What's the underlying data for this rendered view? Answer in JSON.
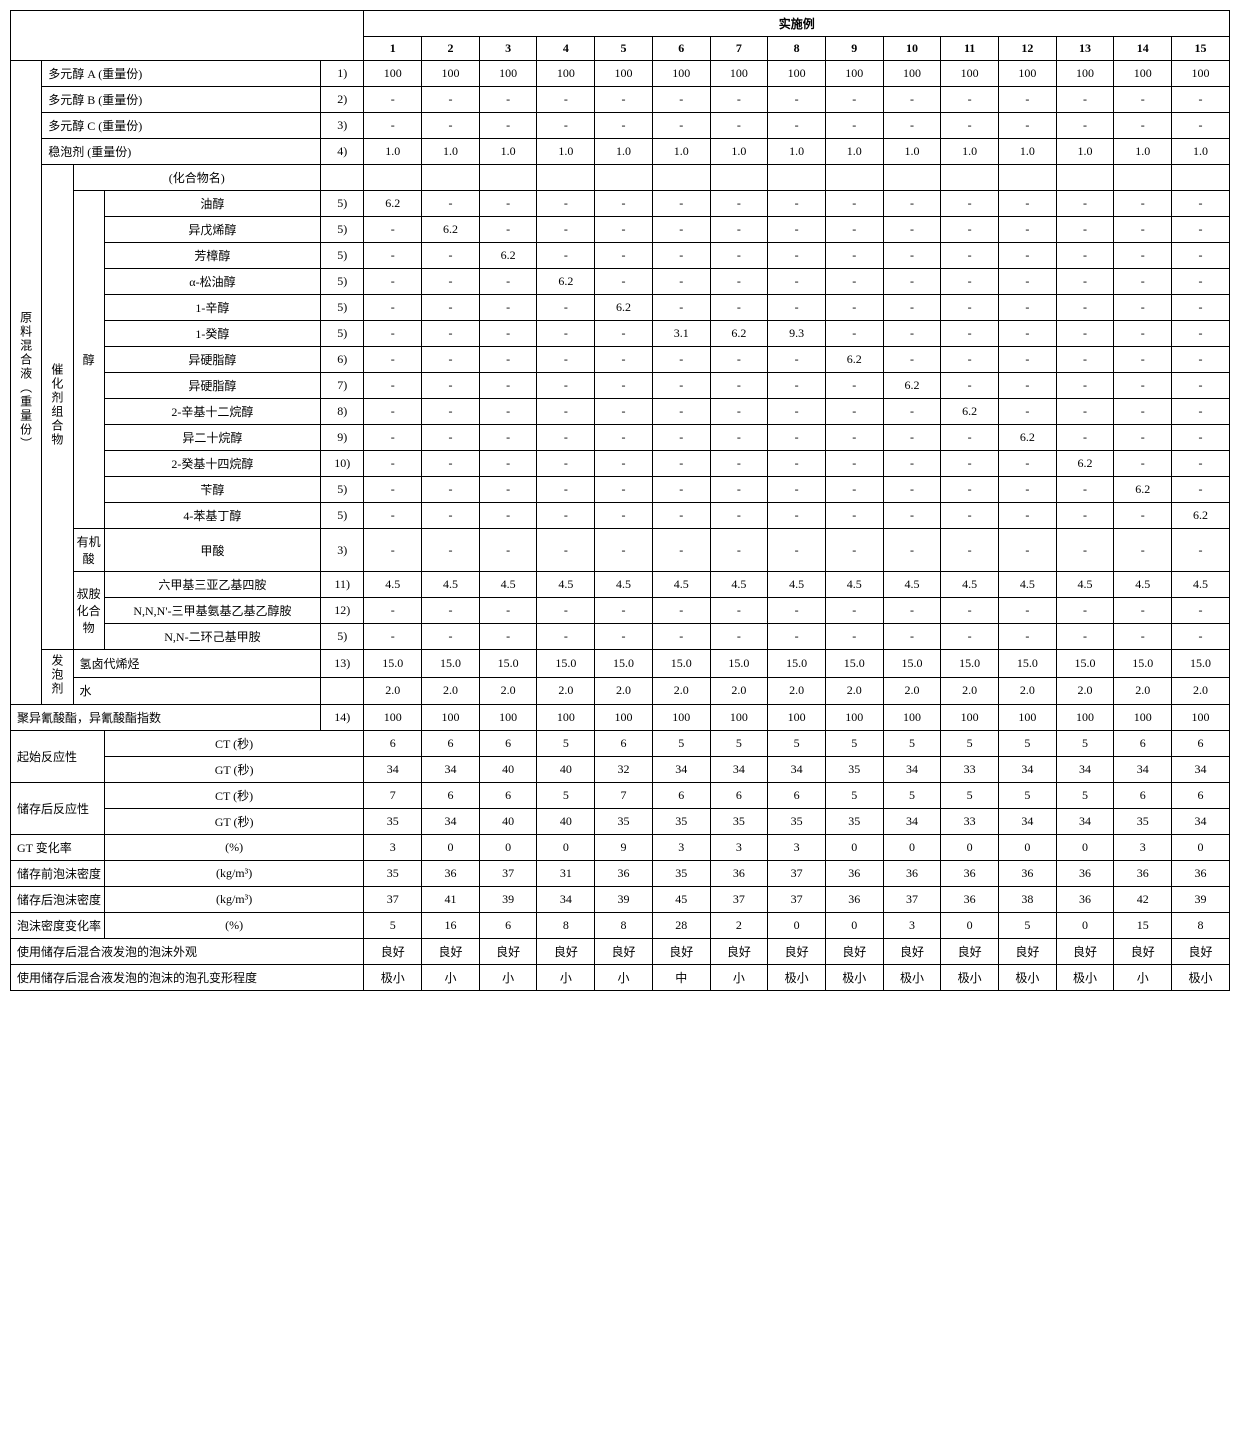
{
  "header": {
    "title": "实施例",
    "cols": [
      "1",
      "2",
      "3",
      "4",
      "5",
      "6",
      "7",
      "8",
      "9",
      "10",
      "11",
      "12",
      "13",
      "14",
      "15"
    ]
  },
  "sideLabels": {
    "rawMix": "原料混合液（重量份）",
    "catalyst": "催化剂组合物",
    "alcohol": "醇",
    "organicAcid": "有机酸",
    "tertAmine": "叔胺化合物",
    "blowing": "发泡剂"
  },
  "rows": {
    "polyA": {
      "label": "多元醇 A (重量份)",
      "note": "1)",
      "vals": [
        "100",
        "100",
        "100",
        "100",
        "100",
        "100",
        "100",
        "100",
        "100",
        "100",
        "100",
        "100",
        "100",
        "100",
        "100"
      ]
    },
    "polyB": {
      "label": "多元醇 B (重量份)",
      "note": "2)",
      "vals": [
        "-",
        "-",
        "-",
        "-",
        "-",
        "-",
        "-",
        "-",
        "-",
        "-",
        "-",
        "-",
        "-",
        "-",
        "-"
      ]
    },
    "polyC": {
      "label": "多元醇 C (重量份)",
      "note": "3)",
      "vals": [
        "-",
        "-",
        "-",
        "-",
        "-",
        "-",
        "-",
        "-",
        "-",
        "-",
        "-",
        "-",
        "-",
        "-",
        "-"
      ]
    },
    "stab": {
      "label": "稳泡剂 (重量份)",
      "note": "4)",
      "vals": [
        "1.0",
        "1.0",
        "1.0",
        "1.0",
        "1.0",
        "1.0",
        "1.0",
        "1.0",
        "1.0",
        "1.0",
        "1.0",
        "1.0",
        "1.0",
        "1.0",
        "1.0"
      ]
    },
    "compName": {
      "label": "(化合物名)",
      "vals": [
        "",
        "",
        "",
        "",
        "",
        "",
        "",
        "",
        "",
        "",
        "",
        "",
        "",
        "",
        ""
      ]
    },
    "a1": {
      "label": "油醇",
      "note": "5)",
      "vals": [
        "6.2",
        "-",
        "-",
        "-",
        "-",
        "-",
        "-",
        "-",
        "-",
        "-",
        "-",
        "-",
        "-",
        "-",
        "-"
      ]
    },
    "a2": {
      "label": "异戊烯醇",
      "note": "5)",
      "vals": [
        "-",
        "6.2",
        "-",
        "-",
        "-",
        "-",
        "-",
        "-",
        "-",
        "-",
        "-",
        "-",
        "-",
        "-",
        "-"
      ]
    },
    "a3": {
      "label": "芳樟醇",
      "note": "5)",
      "vals": [
        "-",
        "-",
        "6.2",
        "-",
        "-",
        "-",
        "-",
        "-",
        "-",
        "-",
        "-",
        "-",
        "-",
        "-",
        "-"
      ]
    },
    "a4": {
      "label": "α-松油醇",
      "note": "5)",
      "vals": [
        "-",
        "-",
        "-",
        "6.2",
        "-",
        "-",
        "-",
        "-",
        "-",
        "-",
        "-",
        "-",
        "-",
        "-",
        "-"
      ]
    },
    "a5": {
      "label": "1-辛醇",
      "note": "5)",
      "vals": [
        "-",
        "-",
        "-",
        "-",
        "6.2",
        "-",
        "-",
        "-",
        "-",
        "-",
        "-",
        "-",
        "-",
        "-",
        "-"
      ]
    },
    "a6": {
      "label": "1-癸醇",
      "note": "5)",
      "vals": [
        "-",
        "-",
        "-",
        "-",
        "-",
        "3.1",
        "6.2",
        "9.3",
        "-",
        "-",
        "-",
        "-",
        "-",
        "-",
        "-"
      ]
    },
    "a7": {
      "label": "异硬脂醇",
      "note": "6)",
      "vals": [
        "-",
        "-",
        "-",
        "-",
        "-",
        "-",
        "-",
        "-",
        "6.2",
        "-",
        "-",
        "-",
        "-",
        "-",
        "-"
      ]
    },
    "a8": {
      "label": "异硬脂醇",
      "note": "7)",
      "vals": [
        "-",
        "-",
        "-",
        "-",
        "-",
        "-",
        "-",
        "-",
        "-",
        "6.2",
        "-",
        "-",
        "-",
        "-",
        "-"
      ]
    },
    "a9": {
      "label": "2-辛基十二烷醇",
      "note": "8)",
      "vals": [
        "-",
        "-",
        "-",
        "-",
        "-",
        "-",
        "-",
        "-",
        "-",
        "-",
        "6.2",
        "-",
        "-",
        "-",
        "-"
      ]
    },
    "a10": {
      "label": "异二十烷醇",
      "note": "9)",
      "vals": [
        "-",
        "-",
        "-",
        "-",
        "-",
        "-",
        "-",
        "-",
        "-",
        "-",
        "-",
        "6.2",
        "-",
        "-",
        "-"
      ]
    },
    "a11": {
      "label": "2-癸基十四烷醇",
      "note": "10)",
      "vals": [
        "-",
        "-",
        "-",
        "-",
        "-",
        "-",
        "-",
        "-",
        "-",
        "-",
        "-",
        "-",
        "6.2",
        "-",
        "-"
      ]
    },
    "a12": {
      "label": "苄醇",
      "note": "5)",
      "vals": [
        "-",
        "-",
        "-",
        "-",
        "-",
        "-",
        "-",
        "-",
        "-",
        "-",
        "-",
        "-",
        "-",
        "6.2",
        "-"
      ]
    },
    "a13": {
      "label": "4-苯基丁醇",
      "note": "5)",
      "vals": [
        "-",
        "-",
        "-",
        "-",
        "-",
        "-",
        "-",
        "-",
        "-",
        "-",
        "-",
        "-",
        "-",
        "-",
        "6.2"
      ]
    },
    "orgAcid": {
      "label": "甲酸",
      "note": "3)",
      "vals": [
        "-",
        "-",
        "-",
        "-",
        "-",
        "-",
        "-",
        "-",
        "-",
        "-",
        "-",
        "-",
        "-",
        "-",
        "-"
      ]
    },
    "am1": {
      "label": "六甲基三亚乙基四胺",
      "note": "11)",
      "vals": [
        "4.5",
        "4.5",
        "4.5",
        "4.5",
        "4.5",
        "4.5",
        "4.5",
        "4.5",
        "4.5",
        "4.5",
        "4.5",
        "4.5",
        "4.5",
        "4.5",
        "4.5"
      ]
    },
    "am2": {
      "label": "N,N,N'-三甲基氨基乙基乙醇胺",
      "note": "12)",
      "vals": [
        "-",
        "-",
        "-",
        "-",
        "-",
        "-",
        "-",
        "-",
        "-",
        "-",
        "-",
        "-",
        "-",
        "-",
        "-"
      ]
    },
    "am3": {
      "label": "N,N-二环己基甲胺",
      "note": "5)",
      "vals": [
        "-",
        "-",
        "-",
        "-",
        "-",
        "-",
        "-",
        "-",
        "-",
        "-",
        "-",
        "-",
        "-",
        "-",
        "-"
      ]
    },
    "blow1": {
      "label": "氢卤代烯烃",
      "note": "13)",
      "vals": [
        "15.0",
        "15.0",
        "15.0",
        "15.0",
        "15.0",
        "15.0",
        "15.0",
        "15.0",
        "15.0",
        "15.0",
        "15.0",
        "15.0",
        "15.0",
        "15.0",
        "15.0"
      ]
    },
    "blow2": {
      "label": "水",
      "vals": [
        "2.0",
        "2.0",
        "2.0",
        "2.0",
        "2.0",
        "2.0",
        "2.0",
        "2.0",
        "2.0",
        "2.0",
        "2.0",
        "2.0",
        "2.0",
        "2.0",
        "2.0"
      ]
    },
    "iso": {
      "label": "聚异氰酸酯，异氰酸酯指数",
      "note": "14)",
      "vals": [
        "100",
        "100",
        "100",
        "100",
        "100",
        "100",
        "100",
        "100",
        "100",
        "100",
        "100",
        "100",
        "100",
        "100",
        "100"
      ]
    },
    "react0": {
      "label": "起始反应性"
    },
    "ct0": {
      "label": "CT (秒)",
      "vals": [
        "6",
        "6",
        "6",
        "5",
        "6",
        "5",
        "5",
        "5",
        "5",
        "5",
        "5",
        "5",
        "5",
        "6",
        "6"
      ]
    },
    "gt0": {
      "label": "GT (秒)",
      "vals": [
        "34",
        "34",
        "40",
        "40",
        "32",
        "34",
        "34",
        "34",
        "35",
        "34",
        "33",
        "34",
        "34",
        "34",
        "34"
      ]
    },
    "react1": {
      "label": "储存后反应性"
    },
    "ct1": {
      "label": "CT (秒)",
      "vals": [
        "7",
        "6",
        "6",
        "5",
        "7",
        "6",
        "6",
        "6",
        "5",
        "5",
        "5",
        "5",
        "5",
        "6",
        "6"
      ]
    },
    "gt1": {
      "label": "GT (秒)",
      "vals": [
        "35",
        "34",
        "40",
        "40",
        "35",
        "35",
        "35",
        "35",
        "35",
        "34",
        "33",
        "34",
        "34",
        "35",
        "34"
      ]
    },
    "gtchg": {
      "label": "GT 变化率",
      "unit": "(%)",
      "vals": [
        "3",
        "0",
        "0",
        "0",
        "9",
        "3",
        "3",
        "3",
        "0",
        "0",
        "0",
        "0",
        "0",
        "3",
        "0"
      ]
    },
    "den0": {
      "label": "储存前泡沫密度",
      "unit": "(kg/m³)",
      "vals": [
        "35",
        "36",
        "37",
        "31",
        "36",
        "35",
        "36",
        "37",
        "36",
        "36",
        "36",
        "36",
        "36",
        "36",
        "36"
      ]
    },
    "den1": {
      "label": "储存后泡沫密度",
      "unit": "(kg/m³)",
      "vals": [
        "37",
        "41",
        "39",
        "34",
        "39",
        "45",
        "37",
        "37",
        "36",
        "37",
        "36",
        "38",
        "36",
        "42",
        "39"
      ]
    },
    "denchg": {
      "label": "泡沫密度变化率",
      "unit": "(%)",
      "vals": [
        "5",
        "16",
        "6",
        "8",
        "8",
        "28",
        "2",
        "0",
        "0",
        "3",
        "0",
        "5",
        "0",
        "15",
        "8"
      ]
    },
    "app": {
      "label": "使用储存后混合液发泡的泡沫外观",
      "vals": [
        "良好",
        "良好",
        "良好",
        "良好",
        "良好",
        "良好",
        "良好",
        "良好",
        "良好",
        "良好",
        "良好",
        "良好",
        "良好",
        "良好",
        "良好"
      ]
    },
    "cell": {
      "label": "使用储存后混合液发泡的泡沫的泡孔变形程度",
      "vals": [
        "极小",
        "小",
        "小",
        "小",
        "小",
        "中",
        "小",
        "极小",
        "极小",
        "极小",
        "极小",
        "极小",
        "极小",
        "小",
        "极小"
      ]
    }
  }
}
